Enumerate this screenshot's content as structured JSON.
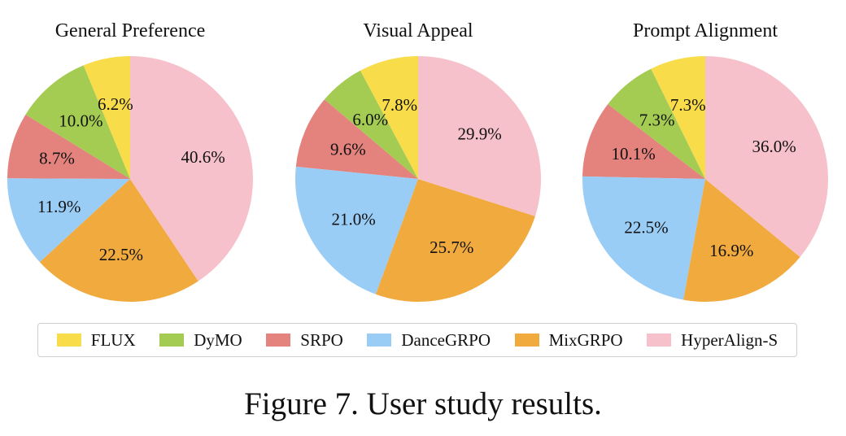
{
  "chart_data": [
    {
      "type": "pie",
      "title": "General Preference",
      "slices": [
        {
          "label": "FLUX",
          "value": 6.2,
          "text": "6.2%"
        },
        {
          "label": "DyMO",
          "value": 10.0,
          "text": "10.0%"
        },
        {
          "label": "SRPO",
          "value": 8.7,
          "text": "8.7%"
        },
        {
          "label": "DanceGRPO",
          "value": 11.9,
          "text": "11.9%"
        },
        {
          "label": "MixGRPO",
          "value": 22.5,
          "text": "22.5%"
        },
        {
          "label": "HyperAlign-S",
          "value": 40.6,
          "text": "40.6%"
        }
      ]
    },
    {
      "type": "pie",
      "title": "Visual Appeal",
      "slices": [
        {
          "label": "FLUX",
          "value": 7.8,
          "text": "7.8%"
        },
        {
          "label": "DyMO",
          "value": 6.0,
          "text": "6.0%"
        },
        {
          "label": "SRPO",
          "value": 9.6,
          "text": "9.6%"
        },
        {
          "label": "DanceGRPO",
          "value": 21.0,
          "text": "21.0%"
        },
        {
          "label": "MixGRPO",
          "value": 25.7,
          "text": "25.7%"
        },
        {
          "label": "HyperAlign-S",
          "value": 29.9,
          "text": "29.9%"
        }
      ]
    },
    {
      "type": "pie",
      "title": "Prompt Alignment",
      "slices": [
        {
          "label": "FLUX",
          "value": 7.3,
          "text": "7.3%"
        },
        {
          "label": "DyMO",
          "value": 7.3,
          "text": "7.3%"
        },
        {
          "label": "SRPO",
          "value": 10.1,
          "text": "10.1%"
        },
        {
          "label": "DanceGRPO",
          "value": 22.5,
          "text": "22.5%"
        },
        {
          "label": "MixGRPO",
          "value": 16.9,
          "text": "16.9%"
        },
        {
          "label": "HyperAlign-S",
          "value": 36.0,
          "text": "36.0%"
        }
      ]
    }
  ],
  "legend": [
    {
      "label": "FLUX",
      "color": "#f9dc4a"
    },
    {
      "label": "DyMO",
      "color": "#a5cc52"
    },
    {
      "label": "SRPO",
      "color": "#e4827e"
    },
    {
      "label": "DanceGRPO",
      "color": "#9acdf6"
    },
    {
      "label": "MixGRPO",
      "color": "#f1aa3e"
    },
    {
      "label": "HyperAlign-S",
      "color": "#f6c1cb"
    }
  ],
  "caption": "Figure 7. User study results."
}
